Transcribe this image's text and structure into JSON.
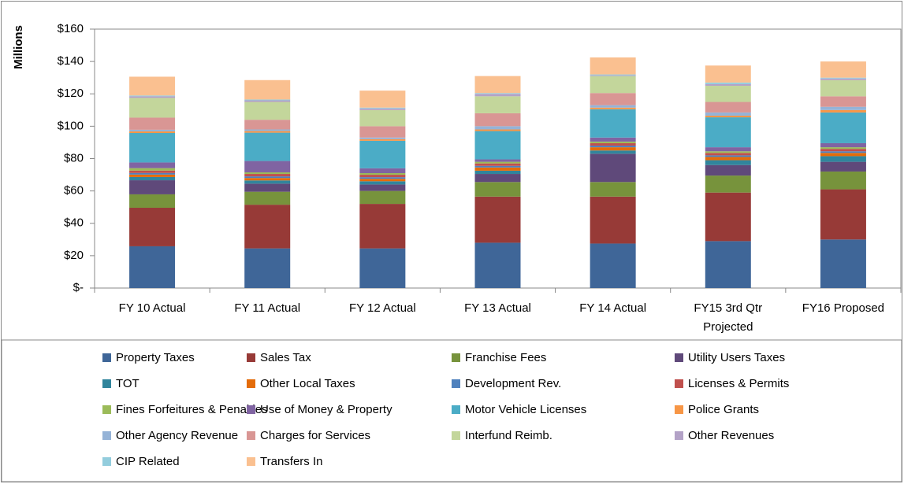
{
  "chart_data": {
    "type": "stacked_bar",
    "ylabel": "Millions",
    "categories": [
      "FY 10 Actual",
      "FY 11 Actual",
      "FY 12 Actual",
      "FY 13 Actual",
      "FY 14 Actual",
      "FY15 3rd Qtr Projected",
      "FY16 Proposed"
    ],
    "ylim": [
      0,
      160
    ],
    "yticks": [
      {
        "value": 0,
        "label": "$-"
      },
      {
        "value": 20,
        "label": "$20"
      },
      {
        "value": 40,
        "label": "$40"
      },
      {
        "value": 60,
        "label": "$60"
      },
      {
        "value": 80,
        "label": "$80"
      },
      {
        "value": 100,
        "label": "$100"
      },
      {
        "value": 120,
        "label": "$120"
      },
      {
        "value": 140,
        "label": "$140"
      },
      {
        "value": 160,
        "label": "$160"
      }
    ],
    "grid": false,
    "legend": "bottom",
    "series": [
      {
        "name": "Property Taxes",
        "color": "#3f6698",
        "values": [
          25.8,
          24.5,
          24.5,
          28,
          27.5,
          29,
          30
        ]
      },
      {
        "name": "Sales Tax",
        "color": "#973a37",
        "values": [
          23.8,
          27,
          27.5,
          28.5,
          29,
          30,
          31
        ]
      },
      {
        "name": "Franchise Fees",
        "color": "#77933c",
        "values": [
          8.3,
          8,
          8,
          9,
          9,
          10.5,
          11
        ]
      },
      {
        "name": "Utility Users Taxes",
        "color": "#5f497a",
        "values": [
          8.7,
          5,
          4,
          5,
          17.5,
          6.5,
          6
        ]
      },
      {
        "name": "TOT",
        "color": "#31859c",
        "values": [
          2,
          2,
          2,
          2,
          2,
          3,
          3.5
        ]
      },
      {
        "name": "Other Local Taxes",
        "color": "#e46c0a",
        "values": [
          1.5,
          1.5,
          1.5,
          2,
          2,
          2,
          2
        ]
      },
      {
        "name": "Development Rev.",
        "color": "#4f81bd",
        "values": [
          1,
          1,
          1,
          1,
          1,
          1,
          1
        ]
      },
      {
        "name": "Licenses & Permits",
        "color": "#c0504d",
        "values": [
          1.5,
          1.5,
          1.5,
          1.5,
          1.5,
          1.5,
          1.5
        ]
      },
      {
        "name": "Fines Forfeitures & Penalties",
        "color": "#9bbb59",
        "values": [
          1.5,
          1,
          1,
          1,
          1,
          1,
          1
        ]
      },
      {
        "name": "Use of Money & Property",
        "color": "#8064a2",
        "values": [
          3.5,
          7,
          3,
          1.5,
          2.5,
          2.5,
          2.5
        ]
      },
      {
        "name": "Motor Vehicle Licenses",
        "color": "#4bacc6",
        "values": [
          18.2,
          17.5,
          17,
          17.5,
          17.5,
          18.5,
          19
        ]
      },
      {
        "name": "Police Grants",
        "color": "#f79646",
        "values": [
          1,
          1,
          1,
          1,
          1,
          1,
          1.5
        ]
      },
      {
        "name": "Other Agency Revenue",
        "color": "#95b3d7",
        "values": [
          1,
          1,
          1,
          2,
          1.5,
          2,
          2
        ]
      },
      {
        "name": "Charges for Services",
        "color": "#d99694",
        "values": [
          7.5,
          6,
          7,
          8,
          7.5,
          6.5,
          6.5
        ]
      },
      {
        "name": "Interfund Reimb.",
        "color": "#c3d69b",
        "values": [
          12.2,
          11,
          10,
          10.5,
          10.5,
          10,
          10
        ]
      },
      {
        "name": "Other Revenues",
        "color": "#b3a2c7",
        "values": [
          1,
          1,
          1,
          1.5,
          0.5,
          1,
          1
        ]
      },
      {
        "name": "CIP Related",
        "color": "#93cddd",
        "values": [
          0.5,
          0.5,
          0.5,
          0.5,
          0.5,
          1,
          0.5
        ]
      },
      {
        "name": "Transfers In",
        "color": "#fac090",
        "values": [
          11.6,
          12,
          10.5,
          10.5,
          10.5,
          10.5,
          10
        ]
      }
    ]
  }
}
